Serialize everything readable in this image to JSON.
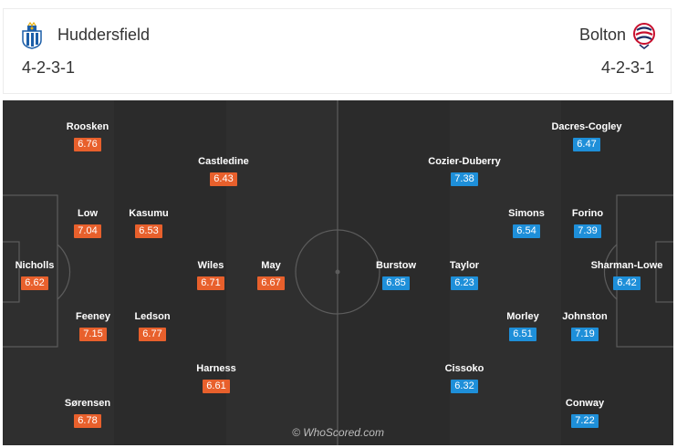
{
  "home": {
    "name": "Huddersfield",
    "formation": "4-2-3-1",
    "color": "#e8602c",
    "crest_icon": "huddersfield-crest-icon",
    "players": [
      {
        "name": "Roosken",
        "rating": "6.76"
      },
      {
        "name": "Castledine",
        "rating": "6.43"
      },
      {
        "name": "Low",
        "rating": "7.04"
      },
      {
        "name": "Kasumu",
        "rating": "6.53"
      },
      {
        "name": "Nicholls",
        "rating": "6.62"
      },
      {
        "name": "Wiles",
        "rating": "6.71"
      },
      {
        "name": "May",
        "rating": "6.67"
      },
      {
        "name": "Feeney",
        "rating": "7.15"
      },
      {
        "name": "Ledson",
        "rating": "6.77"
      },
      {
        "name": "Harness",
        "rating": "6.61"
      },
      {
        "name": "Sørensen",
        "rating": "6.78"
      }
    ]
  },
  "away": {
    "name": "Bolton",
    "formation": "4-2-3-1",
    "color": "#1e8fd9",
    "crest_icon": "bolton-crest-icon",
    "players": [
      {
        "name": "Dacres-Cogley",
        "rating": "6.47"
      },
      {
        "name": "Cozier-Duberry",
        "rating": "7.38"
      },
      {
        "name": "Simons",
        "rating": "6.54"
      },
      {
        "name": "Forino",
        "rating": "7.39"
      },
      {
        "name": "Burstow",
        "rating": "6.85"
      },
      {
        "name": "Taylor",
        "rating": "6.23"
      },
      {
        "name": "Sharman-Lowe",
        "rating": "6.42"
      },
      {
        "name": "Morley",
        "rating": "6.51"
      },
      {
        "name": "Johnston",
        "rating": "7.19"
      },
      {
        "name": "Cissoko",
        "rating": "6.32"
      },
      {
        "name": "Conway",
        "rating": "7.22"
      }
    ]
  },
  "credit": "© WhoScored.com"
}
